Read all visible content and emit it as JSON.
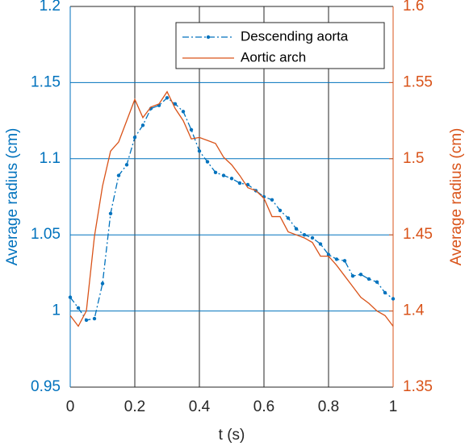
{
  "chart_data": {
    "type": "line",
    "xlabel": "t (s)",
    "ylabel": "Average radius (cm)",
    "y2label": "Average radius (cm)",
    "x": [
      0,
      0.025,
      0.05,
      0.075,
      0.1,
      0.125,
      0.15,
      0.175,
      0.2,
      0.225,
      0.25,
      0.275,
      0.3,
      0.325,
      0.35,
      0.375,
      0.4,
      0.425,
      0.45,
      0.475,
      0.5,
      0.525,
      0.55,
      0.575,
      0.6,
      0.625,
      0.65,
      0.675,
      0.7,
      0.725,
      0.75,
      0.775,
      0.8,
      0.825,
      0.85,
      0.875,
      0.9,
      0.925,
      0.95,
      0.975,
      1
    ],
    "series": [
      {
        "name": "Descending aorta",
        "color": "#0072bd",
        "axis": "y",
        "values": [
          1.009,
          1.002,
          0.994,
          0.995,
          1.018,
          1.064,
          1.089,
          1.096,
          1.114,
          1.122,
          1.133,
          1.135,
          1.14,
          1.136,
          1.131,
          1.119,
          1.105,
          1.098,
          1.091,
          1.089,
          1.087,
          1.084,
          1.083,
          1.079,
          1.075,
          1.073,
          1.066,
          1.061,
          1.054,
          1.05,
          1.048,
          1.044,
          1.037,
          1.034,
          1.033,
          1.023,
          1.024,
          1.021,
          1.019,
          1.012,
          1.008
        ]
      },
      {
        "name": "Aortic arch",
        "color": "#d95319",
        "axis": "y2",
        "values": [
          1.397,
          1.39,
          1.4,
          1.449,
          1.482,
          1.505,
          1.511,
          1.525,
          1.539,
          1.527,
          1.534,
          1.536,
          1.544,
          1.533,
          1.525,
          1.513,
          1.514,
          1.512,
          1.51,
          1.501,
          1.496,
          1.489,
          1.481,
          1.479,
          1.474,
          1.462,
          1.462,
          1.452,
          1.45,
          1.448,
          1.445,
          1.436,
          1.436,
          1.43,
          1.423,
          1.416,
          1.409,
          1.405,
          1.4,
          1.397,
          1.39
        ]
      }
    ],
    "xlim": [
      0,
      1
    ],
    "xticks": [
      0,
      0.2,
      0.4,
      0.6,
      0.8,
      1
    ],
    "ylim": [
      0.95,
      1.2
    ],
    "yticks": [
      0.95,
      1,
      1.05,
      1.1,
      1.15,
      1.2
    ],
    "y2lim": [
      1.35,
      1.6
    ],
    "y2ticks": [
      1.35,
      1.4,
      1.45,
      1.5,
      1.55,
      1.6
    ],
    "grid": true,
    "legend": "upper right"
  }
}
